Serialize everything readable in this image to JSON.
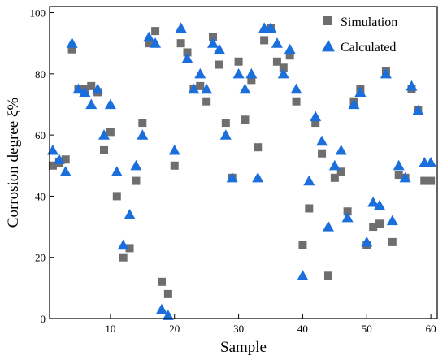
{
  "chart_data": {
    "type": "scatter",
    "xlabel": "Sample",
    "ylabel": "Corrosion degree ξ%",
    "xlim": [
      0.5,
      61
    ],
    "ylim": [
      0,
      102
    ],
    "xticks": [
      10,
      20,
      30,
      40,
      50,
      60
    ],
    "yticks": [
      0,
      20,
      40,
      60,
      80,
      100
    ],
    "legend_position": "top-right",
    "grid": false,
    "series": [
      {
        "name": "Simulation",
        "marker": "square",
        "color": "#6e6e6e",
        "x": [
          1,
          2,
          3,
          4,
          5,
          6,
          7,
          8,
          9,
          10,
          11,
          12,
          13,
          14,
          15,
          16,
          17,
          18,
          19,
          20,
          21,
          22,
          23,
          24,
          25,
          26,
          27,
          28,
          29,
          30,
          31,
          32,
          33,
          34,
          35,
          36,
          37,
          38,
          39,
          40,
          41,
          42,
          43,
          44,
          45,
          46,
          47,
          48,
          49,
          50,
          51,
          52,
          53,
          54,
          55,
          56,
          57,
          58,
          59,
          60
        ],
        "y": [
          50,
          51,
          52,
          88,
          75,
          75,
          76,
          74,
          55,
          61,
          40,
          20,
          23,
          45,
          64,
          90,
          94,
          12,
          8,
          50,
          90,
          87,
          75,
          76,
          71,
          92,
          83,
          64,
          46,
          84,
          65,
          78,
          56,
          91,
          95,
          84,
          82,
          86,
          71,
          24,
          36,
          64,
          54,
          14,
          46,
          48,
          35,
          71,
          75,
          24,
          30,
          31,
          81,
          25,
          47,
          46,
          75,
          68,
          45,
          45
        ]
      },
      {
        "name": "Calculated",
        "marker": "triangle",
        "color": "#1a6fdc",
        "x": [
          1,
          2,
          3,
          4,
          5,
          6,
          7,
          8,
          9,
          10,
          11,
          12,
          13,
          14,
          15,
          16,
          17,
          18,
          19,
          20,
          21,
          22,
          23,
          24,
          25,
          26,
          27,
          28,
          29,
          30,
          31,
          32,
          33,
          34,
          35,
          36,
          37,
          38,
          39,
          40,
          41,
          42,
          43,
          44,
          45,
          46,
          47,
          48,
          49,
          50,
          51,
          52,
          53,
          54,
          55,
          56,
          57,
          58,
          59,
          60
        ],
        "y": [
          55,
          52,
          48,
          90,
          75,
          74,
          70,
          75,
          60,
          70,
          48,
          24,
          34,
          50,
          60,
          92,
          90,
          3,
          1,
          55,
          95,
          85,
          75,
          80,
          75,
          90,
          88,
          60,
          46,
          80,
          75,
          80,
          46,
          95,
          95,
          90,
          80,
          88,
          75,
          14,
          45,
          66,
          58,
          30,
          50,
          55,
          33,
          70,
          74,
          25,
          38,
          37,
          80,
          32,
          50,
          46,
          76,
          68,
          51,
          51
        ]
      }
    ]
  }
}
